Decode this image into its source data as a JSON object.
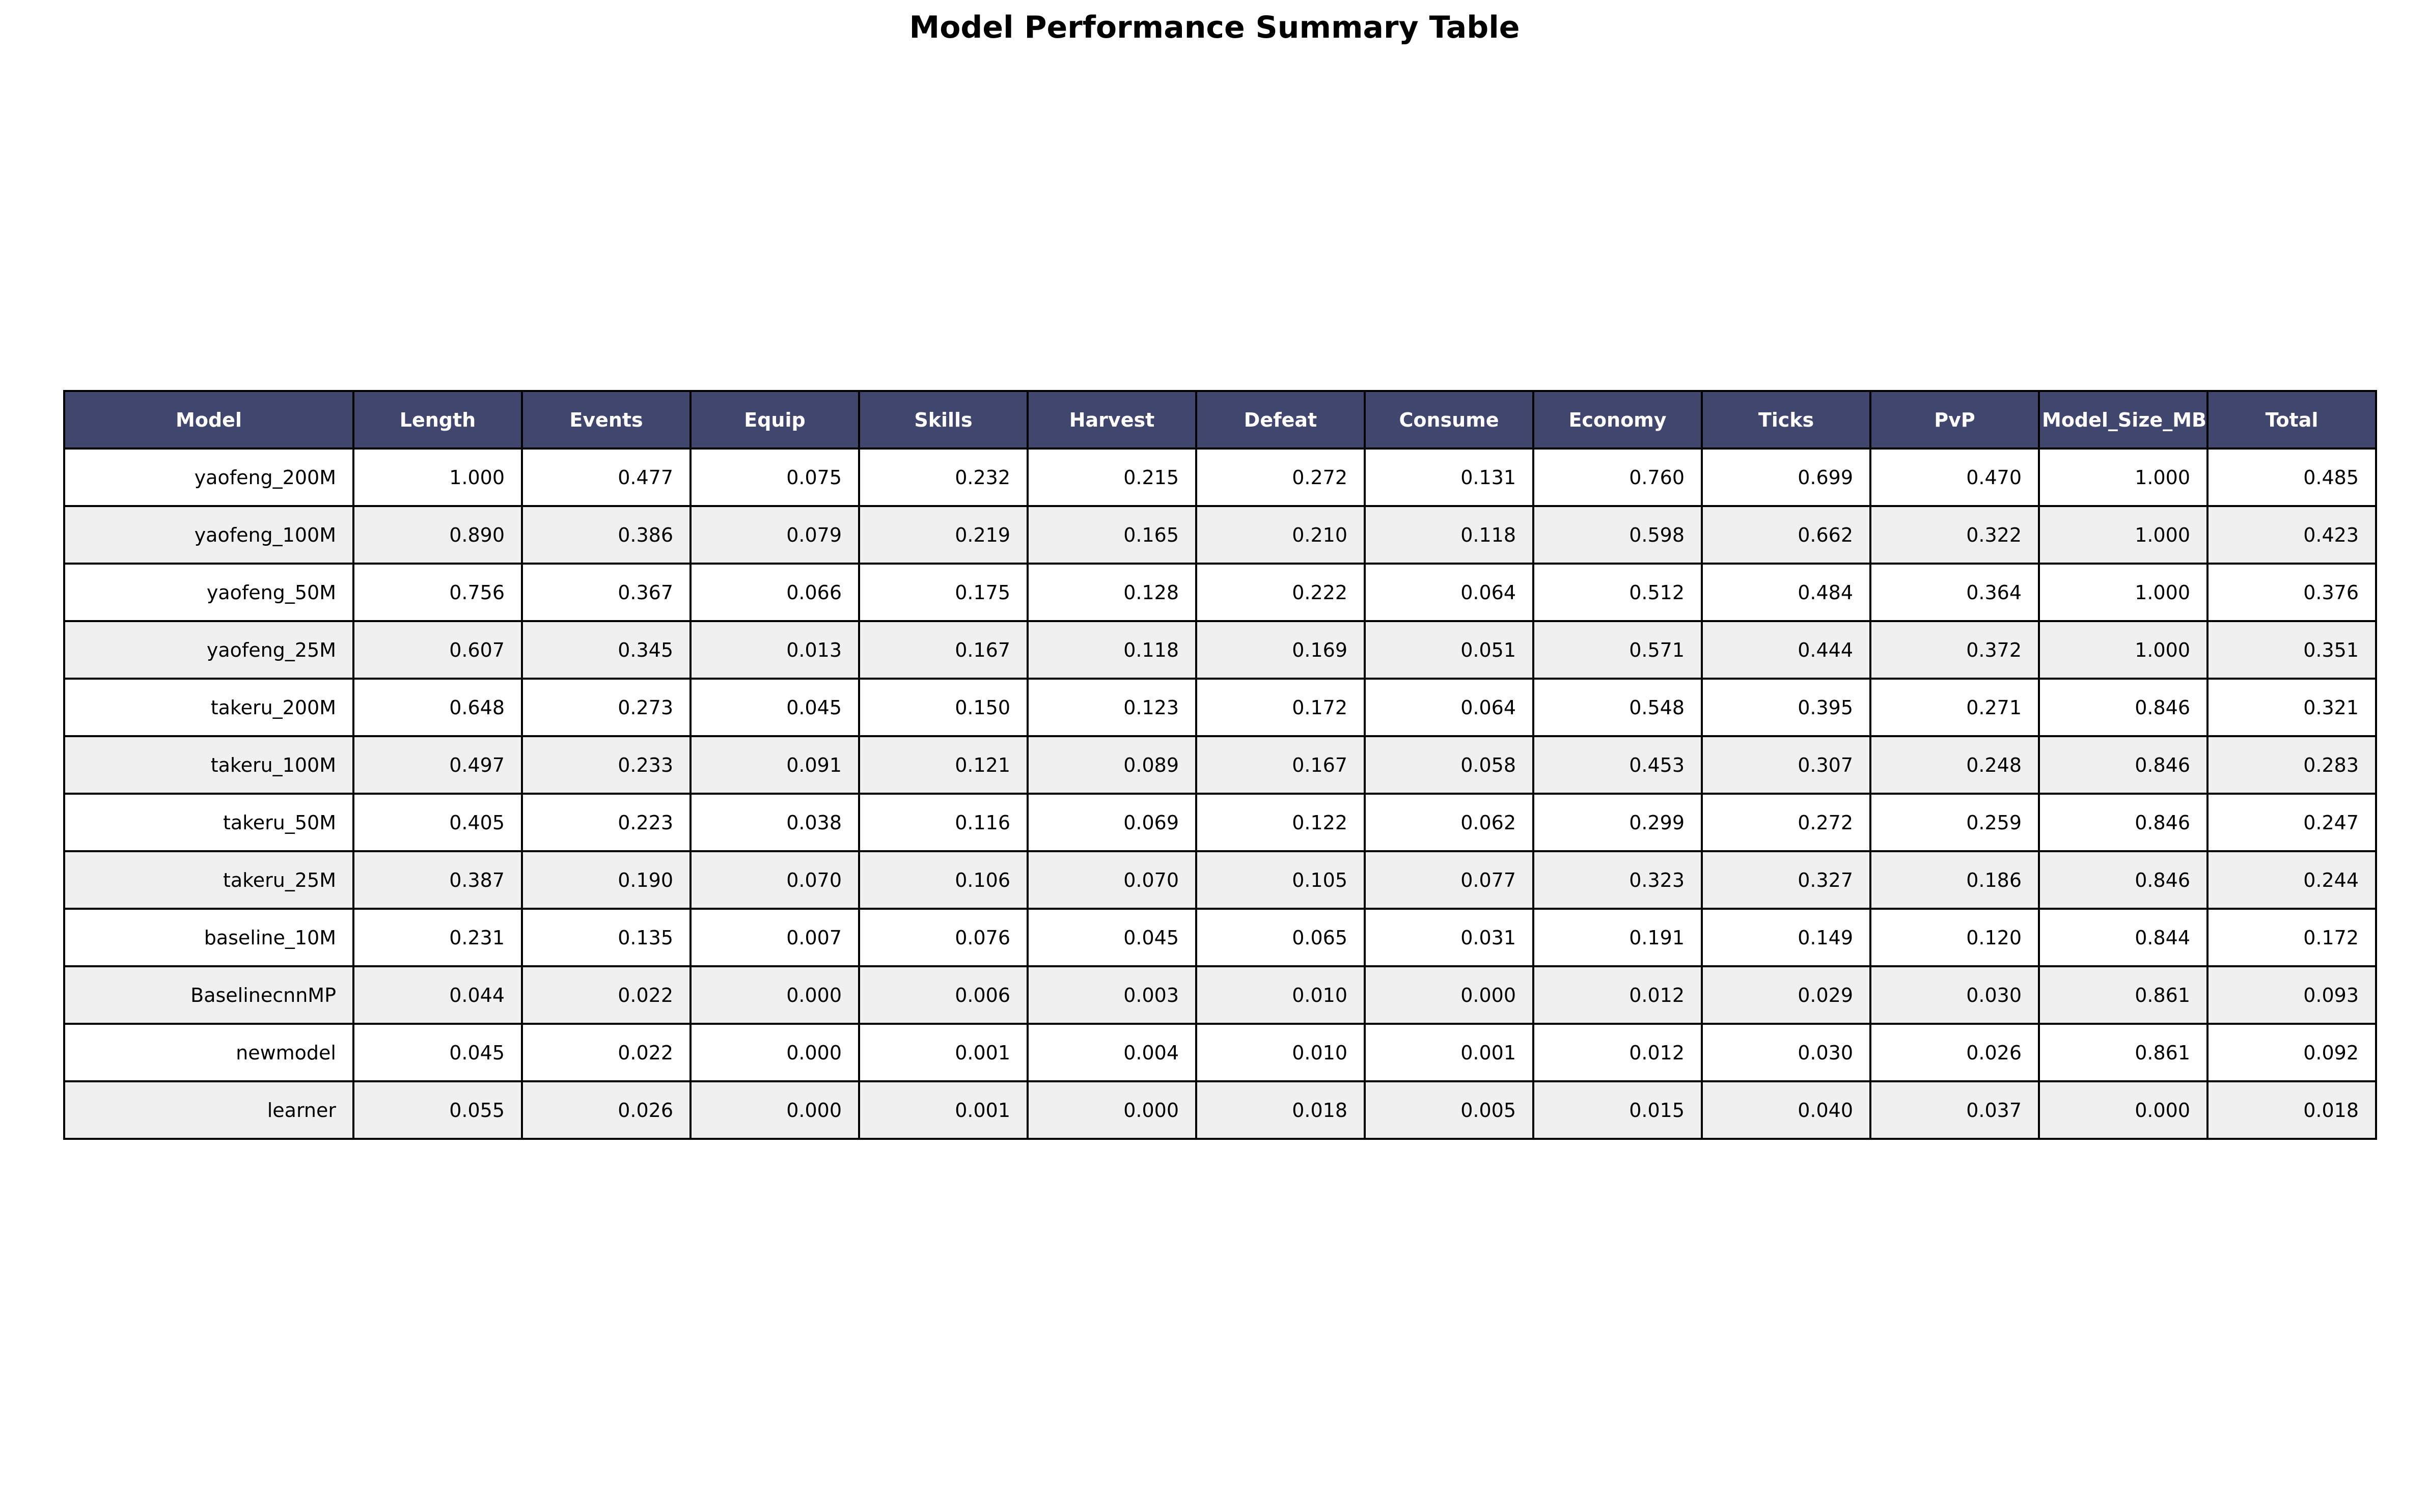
{
  "chart_data": {
    "type": "table",
    "title": "Model Performance Summary Table",
    "columns": [
      "Model",
      "Length",
      "Events",
      "Equip",
      "Skills",
      "Harvest",
      "Defeat",
      "Consume",
      "Economy",
      "Ticks",
      "PvP",
      "Model_Size_MB",
      "Total"
    ],
    "rows": [
      [
        "yaofeng_200M",
        "1.000",
        "0.477",
        "0.075",
        "0.232",
        "0.215",
        "0.272",
        "0.131",
        "0.760",
        "0.699",
        "0.470",
        "1.000",
        "0.485"
      ],
      [
        "yaofeng_100M",
        "0.890",
        "0.386",
        "0.079",
        "0.219",
        "0.165",
        "0.210",
        "0.118",
        "0.598",
        "0.662",
        "0.322",
        "1.000",
        "0.423"
      ],
      [
        "yaofeng_50M",
        "0.756",
        "0.367",
        "0.066",
        "0.175",
        "0.128",
        "0.222",
        "0.064",
        "0.512",
        "0.484",
        "0.364",
        "1.000",
        "0.376"
      ],
      [
        "yaofeng_25M",
        "0.607",
        "0.345",
        "0.013",
        "0.167",
        "0.118",
        "0.169",
        "0.051",
        "0.571",
        "0.444",
        "0.372",
        "1.000",
        "0.351"
      ],
      [
        "takeru_200M",
        "0.648",
        "0.273",
        "0.045",
        "0.150",
        "0.123",
        "0.172",
        "0.064",
        "0.548",
        "0.395",
        "0.271",
        "0.846",
        "0.321"
      ],
      [
        "takeru_100M",
        "0.497",
        "0.233",
        "0.091",
        "0.121",
        "0.089",
        "0.167",
        "0.058",
        "0.453",
        "0.307",
        "0.248",
        "0.846",
        "0.283"
      ],
      [
        "takeru_50M",
        "0.405",
        "0.223",
        "0.038",
        "0.116",
        "0.069",
        "0.122",
        "0.062",
        "0.299",
        "0.272",
        "0.259",
        "0.846",
        "0.247"
      ],
      [
        "takeru_25M",
        "0.387",
        "0.190",
        "0.070",
        "0.106",
        "0.070",
        "0.105",
        "0.077",
        "0.323",
        "0.327",
        "0.186",
        "0.846",
        "0.244"
      ],
      [
        "baseline_10M",
        "0.231",
        "0.135",
        "0.007",
        "0.076",
        "0.045",
        "0.065",
        "0.031",
        "0.191",
        "0.149",
        "0.120",
        "0.844",
        "0.172"
      ],
      [
        "BaselinecnnMP",
        "0.044",
        "0.022",
        "0.000",
        "0.006",
        "0.003",
        "0.010",
        "0.000",
        "0.012",
        "0.029",
        "0.030",
        "0.861",
        "0.093"
      ],
      [
        "newmodel",
        "0.045",
        "0.022",
        "0.000",
        "0.001",
        "0.004",
        "0.010",
        "0.001",
        "0.012",
        "0.030",
        "0.026",
        "0.861",
        "0.092"
      ],
      [
        "learner",
        "0.055",
        "0.026",
        "0.000",
        "0.001",
        "0.000",
        "0.018",
        "0.005",
        "0.015",
        "0.040",
        "0.037",
        "0.000",
        "0.018"
      ]
    ],
    "header_color": "#40466e",
    "header_text_color": "#ffffff",
    "stripe_color": "#f0f0f0"
  }
}
